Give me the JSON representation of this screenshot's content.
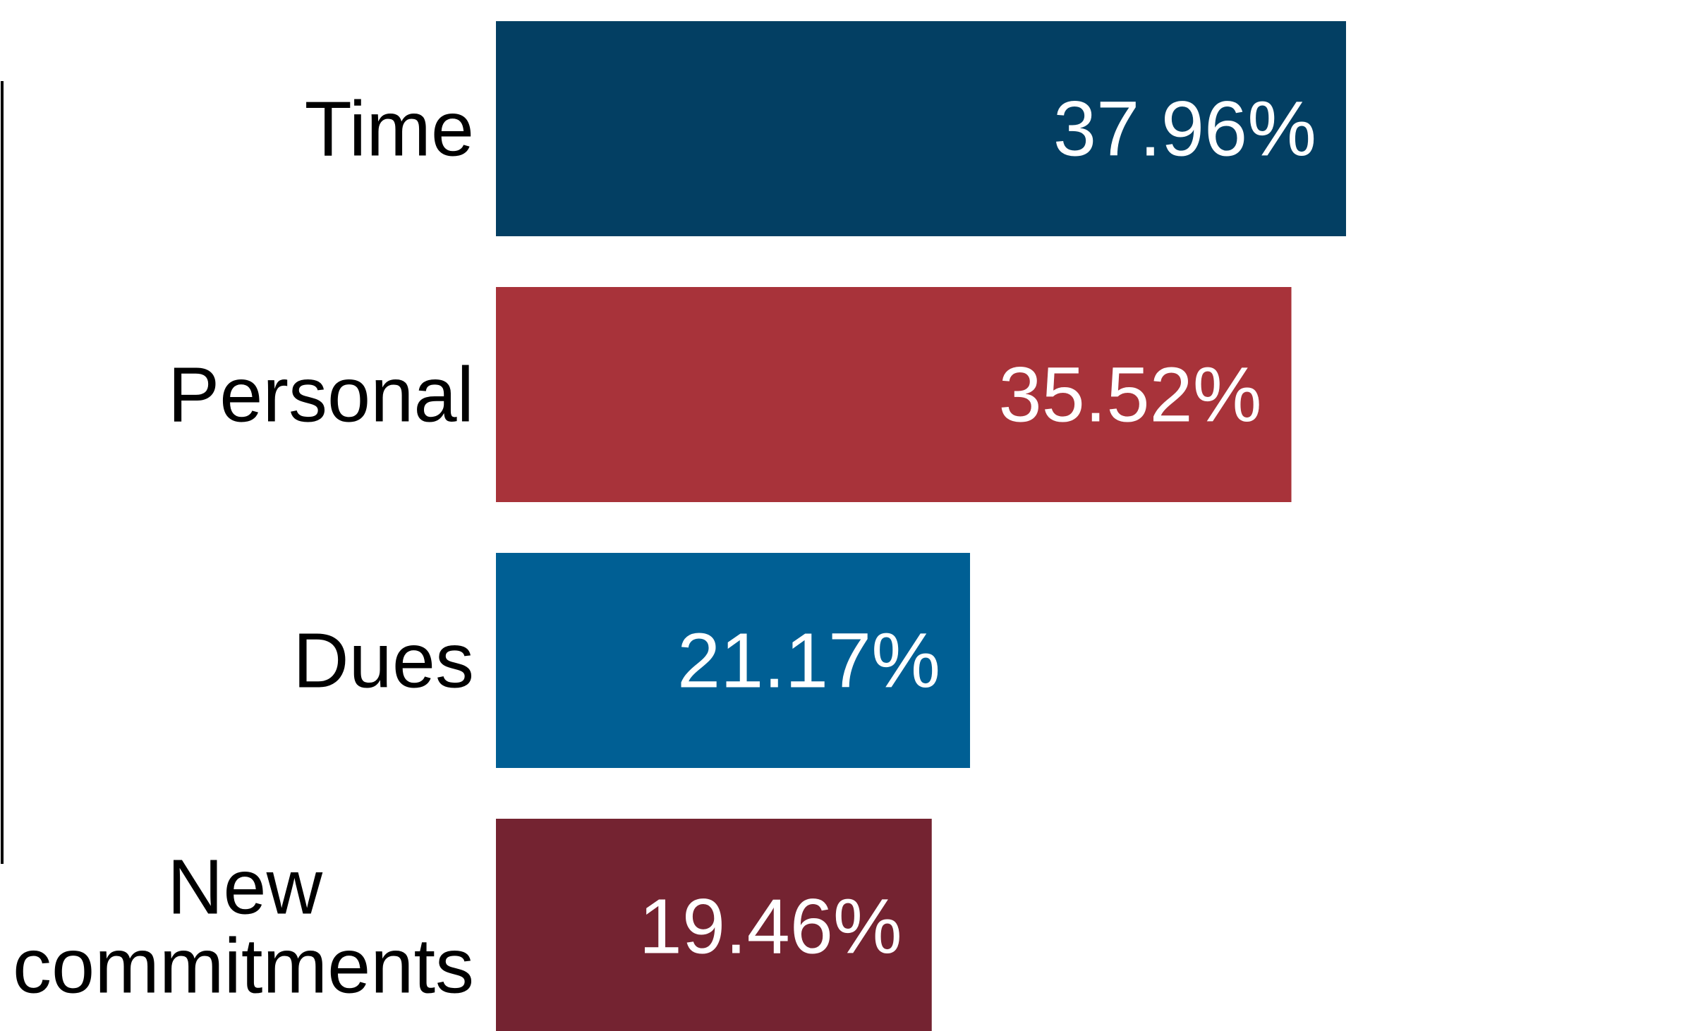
{
  "chart_data": {
    "type": "bar",
    "orientation": "horizontal",
    "title": "",
    "xlabel": "",
    "ylabel": "",
    "grid": false,
    "legend": "none",
    "xlim": [
      0,
      53.9
    ],
    "bars": [
      {
        "category": "Time",
        "value": 37.96,
        "label": "37.96%",
        "color": "#033f63"
      },
      {
        "category": "Personal",
        "value": 35.52,
        "label": "35.52%",
        "color": "#a8333a"
      },
      {
        "category": "Dues",
        "value": 21.17,
        "label": "21.17%",
        "color": "#005f94"
      },
      {
        "category": "New commitments",
        "category_lines": [
          "New",
          "commitments"
        ],
        "value": 19.46,
        "label": "19.46%",
        "color": "#742331"
      }
    ]
  }
}
